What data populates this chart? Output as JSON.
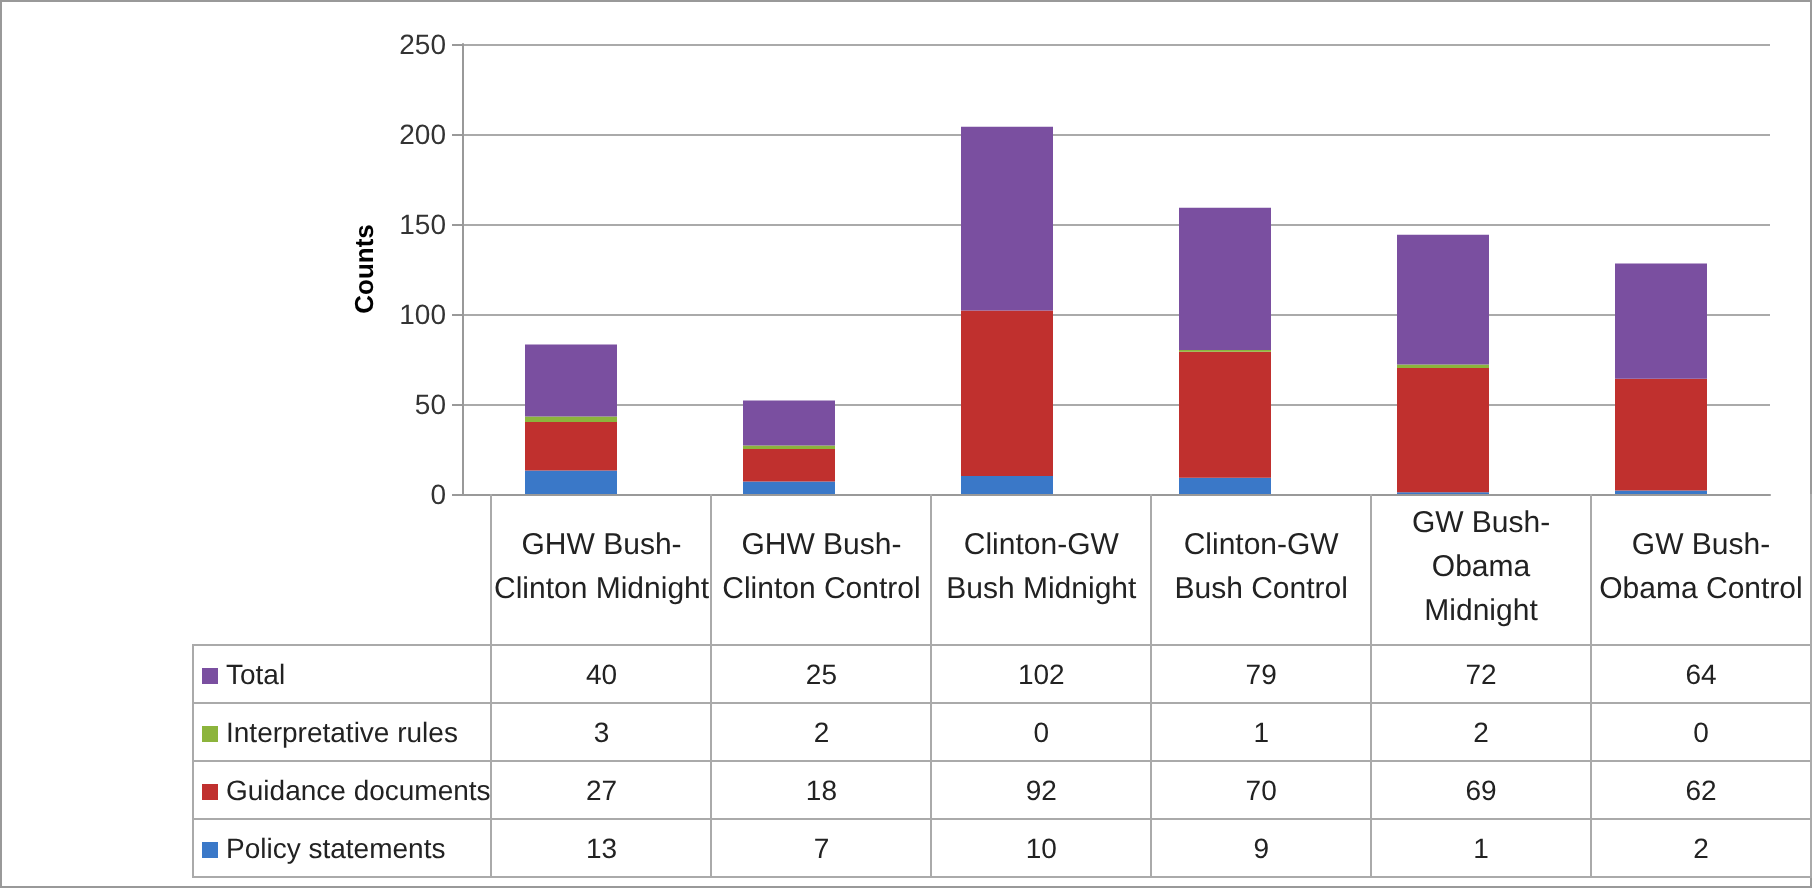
{
  "chart_data": {
    "type": "bar",
    "stacked": true,
    "ylabel": "Counts",
    "categories": [
      "GHW Bush-Clinton Midnight",
      "GHW Bush-Clinton Control",
      "Clinton-GW Bush Midnight",
      "Clinton-GW Bush Control",
      "GW Bush-Obama Midnight",
      "GW Bush-Obama Control"
    ],
    "series": [
      {
        "name": "Policy statements",
        "color": "#3a78c8",
        "values": [
          13,
          7,
          10,
          9,
          1,
          2
        ]
      },
      {
        "name": "Guidance documents",
        "color": "#c0302e",
        "values": [
          27,
          18,
          92,
          70,
          69,
          62
        ]
      },
      {
        "name": "Interpretative rules",
        "color": "#8cb43c",
        "values": [
          3,
          2,
          0,
          1,
          2,
          0
        ]
      },
      {
        "name": "Total",
        "color": "#7a4fa0",
        "values": [
          40,
          25,
          102,
          79,
          72,
          64
        ]
      }
    ],
    "ylim": [
      0,
      250
    ],
    "yticks": [
      0,
      50,
      100,
      150,
      200,
      250
    ],
    "grid": "y",
    "legend": "bottom",
    "data_labels": true
  }
}
